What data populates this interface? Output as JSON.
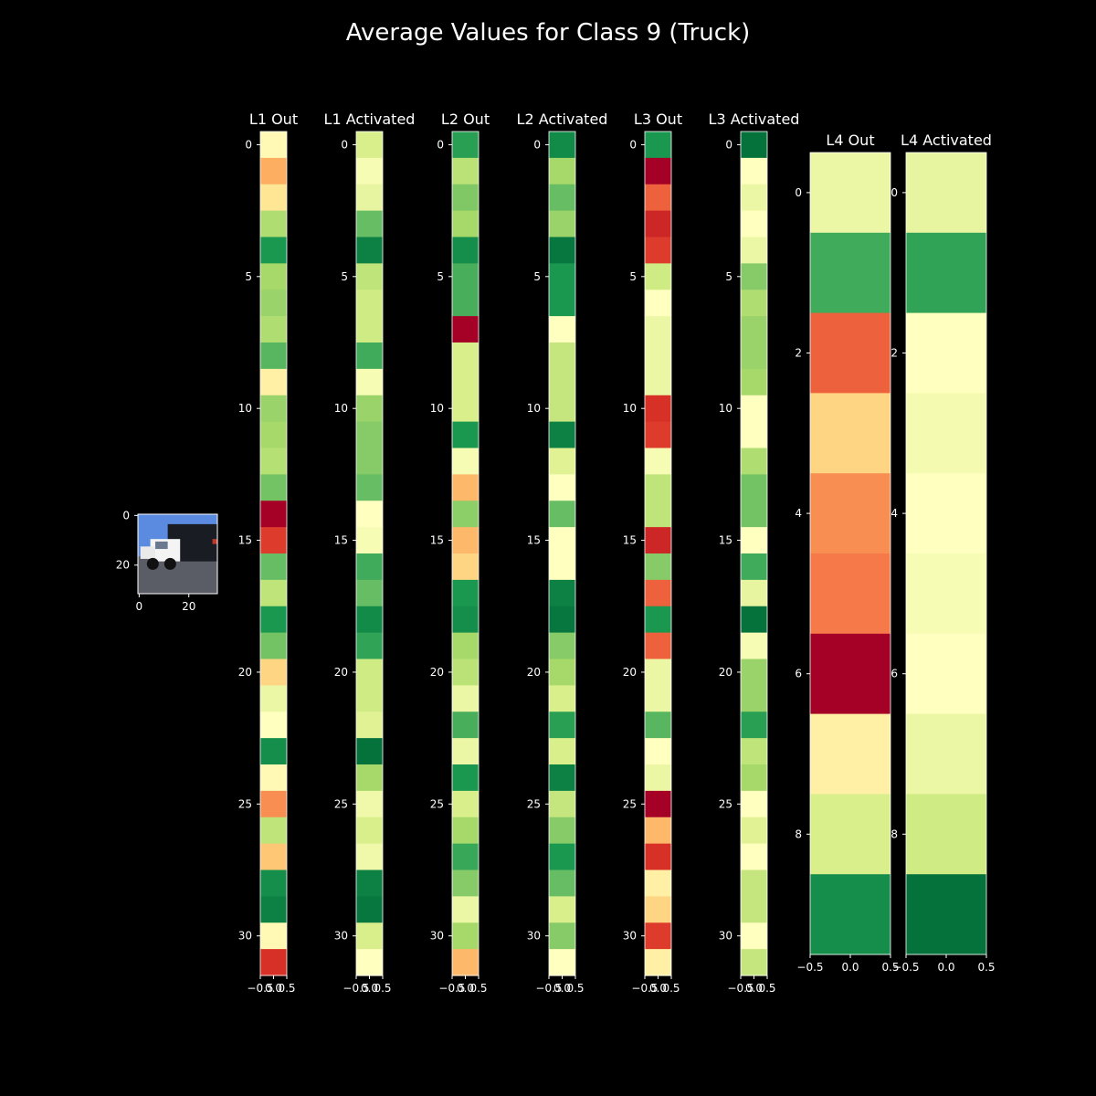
{
  "figure": {
    "title": "Average Values for Class 9 (Truck)",
    "background": "#000000",
    "text_color": "#ffffff"
  },
  "chart_data": [
    {
      "type": "image",
      "name": "input-image",
      "title": "",
      "description_tag": "input",
      "yticks": [
        "0",
        "20"
      ],
      "xticks": [
        "0",
        "20"
      ]
    },
    {
      "type": "heatmap",
      "title": "L1 Out",
      "colormap": "RdYlGn",
      "vmin": 0,
      "vmax": 1,
      "yticks": [
        "0",
        "5",
        "10",
        "15",
        "20",
        "25",
        "30"
      ],
      "xticks": [
        "−0.5",
        "0.0",
        "0.5"
      ],
      "values": [
        0.48,
        0.3,
        0.42,
        0.68,
        0.9,
        0.7,
        0.72,
        0.68,
        0.82,
        0.45,
        0.72,
        0.7,
        0.67,
        0.78,
        0.0,
        0.12,
        0.8,
        0.65,
        0.9,
        0.78,
        0.38,
        0.55,
        0.5,
        0.92,
        0.48,
        0.25,
        0.65,
        0.35,
        0.92,
        0.95,
        0.48,
        0.1
      ]
    },
    {
      "type": "heatmap",
      "title": "L1 Activated",
      "colormap": "RdYlGn",
      "vmin": 0,
      "vmax": 1,
      "yticks": [
        "0",
        "5",
        "10",
        "15",
        "20",
        "25",
        "30"
      ],
      "xticks": [
        "−0.5",
        "0.0",
        "0.5"
      ],
      "values": [
        0.6,
        0.52,
        0.56,
        0.8,
        0.95,
        0.65,
        0.62,
        0.62,
        0.85,
        0.52,
        0.72,
        0.75,
        0.75,
        0.8,
        0.5,
        0.52,
        0.85,
        0.8,
        0.93,
        0.87,
        0.62,
        0.62,
        0.58,
        0.98,
        0.7,
        0.54,
        0.6,
        0.54,
        0.95,
        0.97,
        0.6,
        0.5
      ]
    },
    {
      "type": "heatmap",
      "title": "L2 Out",
      "colormap": "RdYlGn",
      "vmin": 0,
      "vmax": 1,
      "yticks": [
        "0",
        "5",
        "10",
        "15",
        "20",
        "25",
        "30"
      ],
      "xticks": [
        "−0.5",
        "0.0",
        "0.5"
      ],
      "values": [
        0.88,
        0.66,
        0.76,
        0.7,
        0.92,
        0.84,
        0.84,
        0.0,
        0.6,
        0.6,
        0.6,
        0.9,
        0.52,
        0.32,
        0.74,
        0.32,
        0.38,
        0.9,
        0.92,
        0.7,
        0.66,
        0.55,
        0.84,
        0.55,
        0.9,
        0.6,
        0.7,
        0.86,
        0.75,
        0.55,
        0.7,
        0.32
      ]
    },
    {
      "type": "heatmap",
      "title": "L2 Activated",
      "colormap": "RdYlGn",
      "vmin": 0,
      "vmax": 1,
      "yticks": [
        "0",
        "5",
        "10",
        "15",
        "20",
        "25",
        "30"
      ],
      "xticks": [
        "−0.5",
        "0.0",
        "0.5"
      ],
      "values": [
        0.93,
        0.7,
        0.8,
        0.72,
        0.97,
        0.9,
        0.9,
        0.5,
        0.64,
        0.64,
        0.64,
        0.95,
        0.58,
        0.5,
        0.8,
        0.5,
        0.5,
        0.95,
        0.97,
        0.75,
        0.7,
        0.6,
        0.88,
        0.6,
        0.95,
        0.64,
        0.75,
        0.9,
        0.8,
        0.6,
        0.75,
        0.5
      ]
    },
    {
      "type": "heatmap",
      "title": "L3 Out",
      "colormap": "RdYlGn",
      "vmin": 0,
      "vmax": 1,
      "yticks": [
        "0",
        "5",
        "10",
        "15",
        "20",
        "25",
        "30"
      ],
      "xticks": [
        "−0.5",
        "0.0",
        "0.5"
      ],
      "values": [
        0.9,
        0.0,
        0.18,
        0.08,
        0.12,
        0.62,
        0.5,
        0.55,
        0.55,
        0.55,
        0.1,
        0.12,
        0.52,
        0.65,
        0.65,
        0.08,
        0.75,
        0.18,
        0.9,
        0.18,
        0.55,
        0.55,
        0.82,
        0.5,
        0.55,
        0.0,
        0.32,
        0.1,
        0.45,
        0.38,
        0.12,
        0.45
      ]
    },
    {
      "type": "heatmap",
      "title": "L3 Activated",
      "colormap": "RdYlGn",
      "vmin": 0,
      "vmax": 1,
      "yticks": [
        "0",
        "5",
        "10",
        "15",
        "20",
        "25",
        "30"
      ],
      "xticks": [
        "−0.5",
        "0.0",
        "0.5"
      ],
      "values": [
        0.98,
        0.5,
        0.55,
        0.5,
        0.55,
        0.75,
        0.68,
        0.72,
        0.72,
        0.7,
        0.5,
        0.5,
        0.68,
        0.78,
        0.78,
        0.5,
        0.85,
        0.56,
        0.98,
        0.52,
        0.72,
        0.72,
        0.88,
        0.65,
        0.7,
        0.5,
        0.58,
        0.5,
        0.64,
        0.64,
        0.5,
        0.64
      ]
    },
    {
      "type": "heatmap",
      "title": "L4 Out",
      "colormap": "RdYlGn",
      "vmin": 0,
      "vmax": 1,
      "yticks": [
        "0",
        "2",
        "4",
        "6",
        "8"
      ],
      "xticks": [
        "−0.5",
        "0.0",
        "0.5"
      ],
      "values": [
        0.55,
        0.85,
        0.18,
        0.38,
        0.25,
        0.22,
        0.0,
        0.45,
        0.6,
        0.92
      ]
    },
    {
      "type": "heatmap",
      "title": "L4 Activated",
      "colormap": "RdYlGn",
      "vmin": 0,
      "vmax": 1,
      "yticks": [
        "0",
        "2",
        "4",
        "6",
        "8"
      ],
      "xticks": [
        "−0.5",
        "0.0",
        "0.5"
      ],
      "values": [
        0.56,
        0.87,
        0.5,
        0.53,
        0.5,
        0.52,
        0.5,
        0.55,
        0.62,
        0.98
      ]
    }
  ]
}
